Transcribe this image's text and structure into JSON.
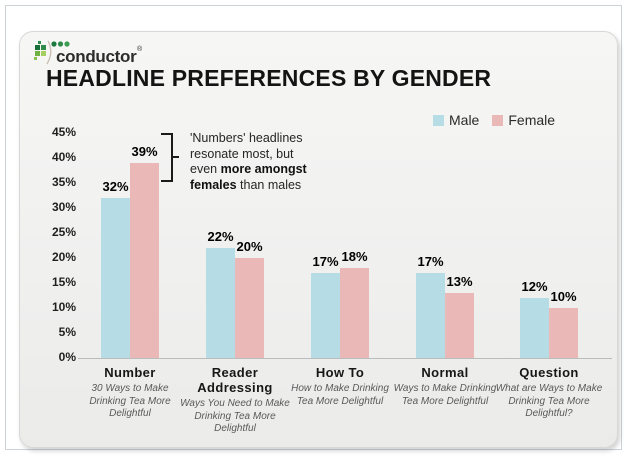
{
  "logo": {
    "brand": "conductor",
    "registered": "®",
    "brand_green": "#2e8b4a"
  },
  "title": "HEADLINE PREFERENCES BY GENDER",
  "legend": [
    {
      "label": "Male",
      "color": "#b6dde6"
    },
    {
      "label": "Female",
      "color": "#e9b8b7"
    }
  ],
  "annotation": {
    "lines": [
      [
        {
          "t": "'Numbers' headlines",
          "b": false
        }
      ],
      [
        {
          "t": "resonate most, but",
          "b": false
        }
      ],
      [
        {
          "t": "even ",
          "b": false
        },
        {
          "t": "more amongst",
          "b": true
        }
      ],
      [
        {
          "t": "females",
          "b": true
        },
        {
          "t": " than males",
          "b": false
        }
      ]
    ]
  },
  "chart_data": {
    "type": "bar",
    "title": "HEADLINE PREFERENCES BY GENDER",
    "categories": [
      "Number",
      "Reader Addressing",
      "How To",
      "Normal",
      "Question"
    ],
    "category_subtitles": [
      "30 Ways to Make Drinking Tea More Delightful",
      "Ways You Need to Make Drinking Tea More Delightful",
      "How to Make Drinking Tea More Delightful",
      "Ways to Make Drinking Tea More Delightful",
      "What are Ways to Make Drinking Tea More Delightful?"
    ],
    "series": [
      {
        "name": "Male",
        "color": "#b6dde6",
        "values": [
          32,
          22,
          17,
          17,
          12
        ]
      },
      {
        "name": "Female",
        "color": "#e9b8b7",
        "values": [
          39,
          20,
          18,
          13,
          10
        ]
      }
    ],
    "value_suffix": "%",
    "ylim": [
      0,
      45
    ],
    "ytick_step": 5,
    "grid": false,
    "legend_position": "top-right",
    "annotation_text": "'Numbers' headlines resonate most, but even more amongst females than males"
  }
}
